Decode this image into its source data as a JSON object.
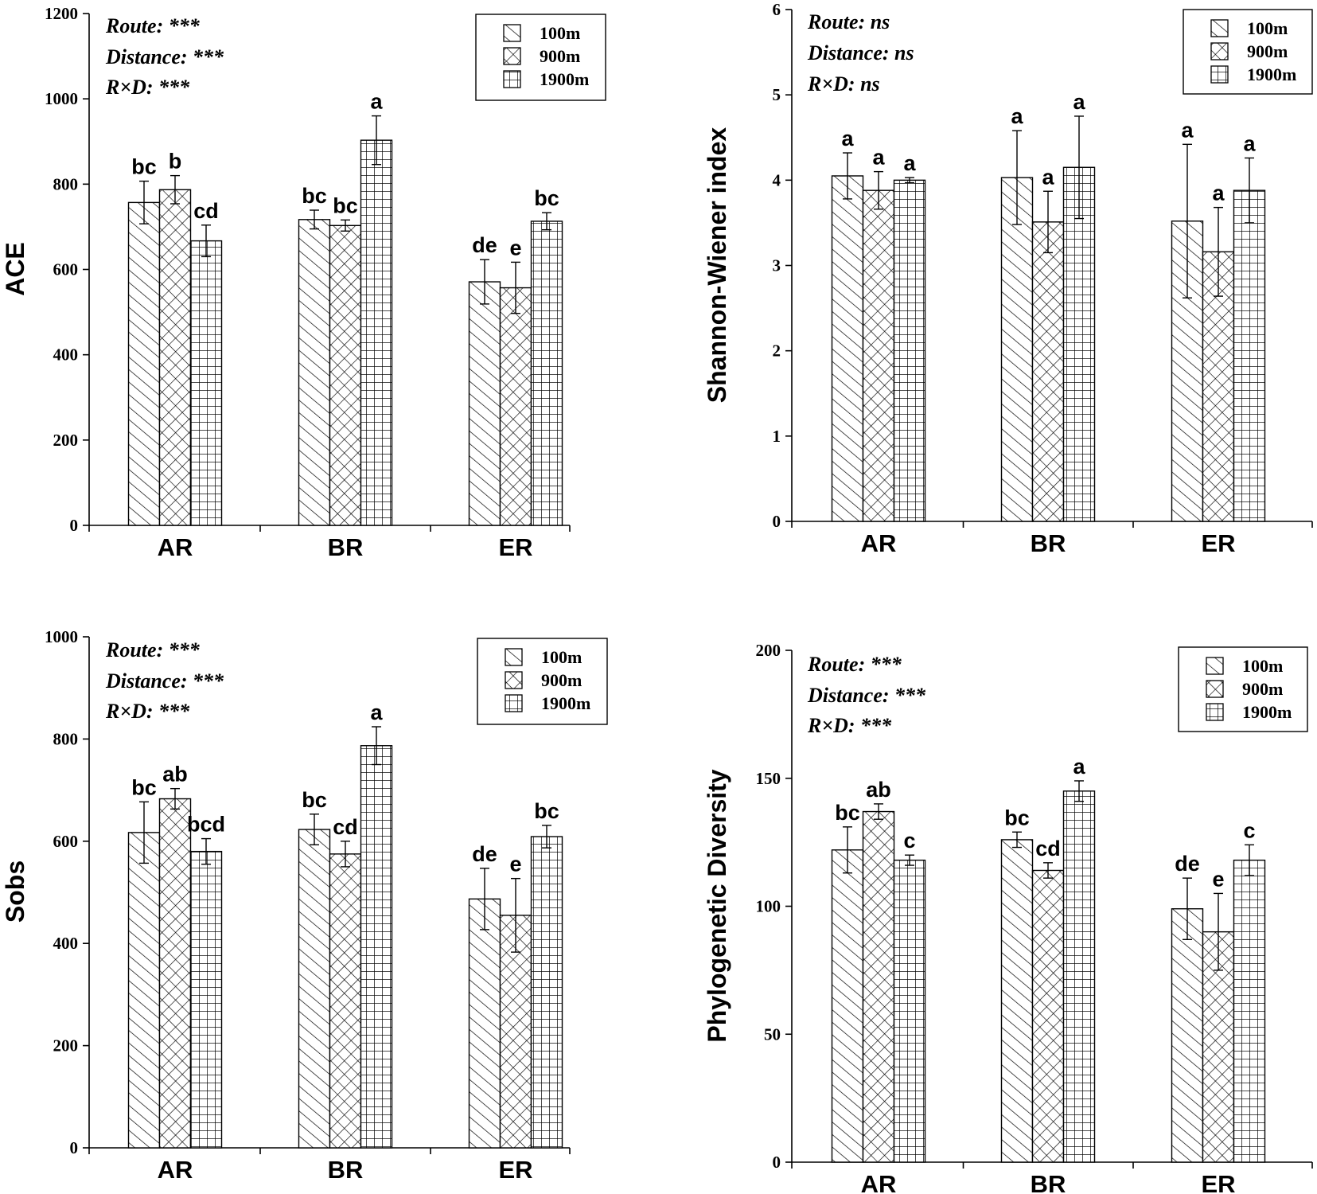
{
  "chart_data": [
    {
      "type": "bar",
      "ylabel": "ACE",
      "categories": [
        "AR",
        "BR",
        "ER"
      ],
      "ylim": [
        0,
        1200
      ],
      "yticks": [
        0,
        200,
        400,
        600,
        800,
        1000,
        1200
      ],
      "stats": [
        "Route: ***",
        "Distance: ***",
        "R×D: ***"
      ],
      "series": [
        {
          "name": "100m",
          "pattern": "diag",
          "values": [
            757,
            717,
            571
          ],
          "errors": [
            50,
            22,
            52
          ],
          "letters": [
            "bc",
            "bc",
            "de"
          ]
        },
        {
          "name": "900m",
          "pattern": "cross",
          "values": [
            787,
            703,
            557
          ],
          "errors": [
            33,
            13,
            60
          ],
          "letters": [
            "b",
            "bc",
            "e"
          ]
        },
        {
          "name": "1900m",
          "pattern": "grid",
          "values": [
            667,
            903,
            713
          ],
          "errors": [
            37,
            57,
            20
          ],
          "letters": [
            "cd",
            "a",
            "bc"
          ]
        }
      ]
    },
    {
      "type": "bar",
      "ylabel": "Shannon-Wiener index",
      "categories": [
        "AR",
        "BR",
        "ER"
      ],
      "ylim": [
        0,
        6
      ],
      "yticks": [
        0,
        1,
        2,
        3,
        4,
        5,
        6
      ],
      "stats": [
        "Route: ns",
        "Distance: ns",
        "R×D: ns"
      ],
      "series": [
        {
          "name": "100m",
          "pattern": "diag",
          "values": [
            4.05,
            4.03,
            3.52
          ],
          "errors": [
            0.27,
            0.55,
            0.9
          ],
          "letters": [
            "a",
            "a",
            "a"
          ]
        },
        {
          "name": "900m",
          "pattern": "cross",
          "values": [
            3.88,
            3.51,
            3.16
          ],
          "errors": [
            0.22,
            0.36,
            0.52
          ],
          "letters": [
            "a",
            "a",
            "a"
          ]
        },
        {
          "name": "1900m",
          "pattern": "grid",
          "values": [
            4.0,
            4.15,
            3.88
          ],
          "errors": [
            0.03,
            0.6,
            0.38
          ],
          "letters": [
            "a",
            "a",
            "a"
          ]
        }
      ]
    },
    {
      "type": "bar",
      "ylabel": "Sobs",
      "categories": [
        "AR",
        "BR",
        "ER"
      ],
      "ylim": [
        0,
        1000
      ],
      "yticks": [
        0,
        200,
        400,
        600,
        800,
        1000
      ],
      "stats": [
        "Route: ***",
        "Distance: ***",
        "R×D: ***"
      ],
      "series": [
        {
          "name": "100m",
          "pattern": "diag",
          "values": [
            617,
            623,
            487
          ],
          "errors": [
            60,
            30,
            60
          ],
          "letters": [
            "bc",
            "bc",
            "de"
          ]
        },
        {
          "name": "900m",
          "pattern": "cross",
          "values": [
            683,
            575,
            455
          ],
          "errors": [
            20,
            25,
            72
          ],
          "letters": [
            "ab",
            "cd",
            "e"
          ]
        },
        {
          "name": "1900m",
          "pattern": "grid",
          "values": [
            580,
            787,
            609
          ],
          "errors": [
            25,
            37,
            22
          ],
          "letters": [
            "bcd",
            "a",
            "bc"
          ]
        }
      ]
    },
    {
      "type": "bar",
      "ylabel": "Phylogenetic Diversity",
      "categories": [
        "AR",
        "BR",
        "ER"
      ],
      "ylim": [
        0,
        200
      ],
      "yticks": [
        0,
        50,
        100,
        150,
        200
      ],
      "stats": [
        "Route: ***",
        "Distance: ***",
        "R×D: ***"
      ],
      "series": [
        {
          "name": "100m",
          "pattern": "diag",
          "values": [
            122,
            126,
            99
          ],
          "errors": [
            9,
            3,
            12
          ],
          "letters": [
            "bc",
            "bc",
            "de"
          ]
        },
        {
          "name": "900m",
          "pattern": "cross",
          "values": [
            137,
            114,
            90
          ],
          "errors": [
            3,
            3,
            15
          ],
          "letters": [
            "ab",
            "cd",
            "e"
          ]
        },
        {
          "name": "1900m",
          "pattern": "grid",
          "values": [
            118,
            145,
            118
          ],
          "errors": [
            2,
            4,
            6
          ],
          "letters": [
            "c",
            "a",
            "c"
          ]
        }
      ]
    }
  ]
}
